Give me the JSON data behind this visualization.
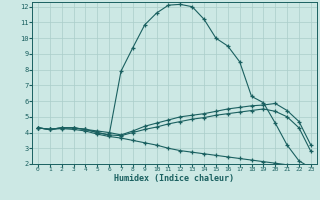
{
  "xlabel": "Humidex (Indice chaleur)",
  "bg_color": "#cce8e4",
  "grid_color": "#aaceca",
  "line_color": "#1a6060",
  "xlim": [
    -0.5,
    23.5
  ],
  "ylim": [
    2,
    12.3
  ],
  "xticks": [
    0,
    1,
    2,
    3,
    4,
    5,
    6,
    7,
    8,
    9,
    10,
    11,
    12,
    13,
    14,
    15,
    16,
    17,
    18,
    19,
    20,
    21,
    22,
    23
  ],
  "yticks": [
    2,
    3,
    4,
    5,
    6,
    7,
    8,
    9,
    10,
    11,
    12
  ],
  "line1_x": [
    0,
    1,
    2,
    3,
    4,
    5,
    6,
    7,
    8,
    9,
    10,
    11,
    12,
    13,
    14,
    15,
    16,
    17,
    18,
    19,
    20,
    21,
    22,
    23
  ],
  "line1_y": [
    4.3,
    4.2,
    4.3,
    4.3,
    4.2,
    4.0,
    3.85,
    7.9,
    9.4,
    10.85,
    11.6,
    12.1,
    12.15,
    12.0,
    11.2,
    10.0,
    9.5,
    8.5,
    6.3,
    5.9,
    4.6,
    3.2,
    2.2,
    1.75
  ],
  "line2_x": [
    0,
    1,
    2,
    3,
    4,
    5,
    6,
    7,
    8,
    9,
    10,
    11,
    12,
    13,
    14,
    15,
    16,
    17,
    18,
    19,
    20,
    21,
    22,
    23
  ],
  "line2_y": [
    4.3,
    4.2,
    4.3,
    4.3,
    4.2,
    4.1,
    4.0,
    3.85,
    4.1,
    4.4,
    4.6,
    4.8,
    5.0,
    5.1,
    5.2,
    5.35,
    5.5,
    5.6,
    5.7,
    5.75,
    5.85,
    5.4,
    4.7,
    3.2
  ],
  "line3_x": [
    0,
    1,
    2,
    3,
    4,
    5,
    6,
    7,
    8,
    9,
    10,
    11,
    12,
    13,
    14,
    15,
    16,
    17,
    18,
    19,
    20,
    21,
    22,
    23
  ],
  "line3_y": [
    4.3,
    4.2,
    4.3,
    4.3,
    4.2,
    4.0,
    3.85,
    3.8,
    4.0,
    4.2,
    4.35,
    4.55,
    4.7,
    4.85,
    4.95,
    5.1,
    5.2,
    5.3,
    5.4,
    5.5,
    5.35,
    5.0,
    4.3,
    2.8
  ],
  "line4_x": [
    0,
    1,
    2,
    3,
    4,
    5,
    6,
    7,
    8,
    9,
    10,
    11,
    12,
    13,
    14,
    15,
    16,
    17,
    18,
    19,
    20,
    21,
    22,
    23
  ],
  "line4_y": [
    4.3,
    4.2,
    4.25,
    4.2,
    4.1,
    3.9,
    3.75,
    3.65,
    3.5,
    3.35,
    3.2,
    3.0,
    2.85,
    2.75,
    2.65,
    2.55,
    2.45,
    2.35,
    2.25,
    2.15,
    2.05,
    1.95,
    1.85,
    1.75
  ]
}
